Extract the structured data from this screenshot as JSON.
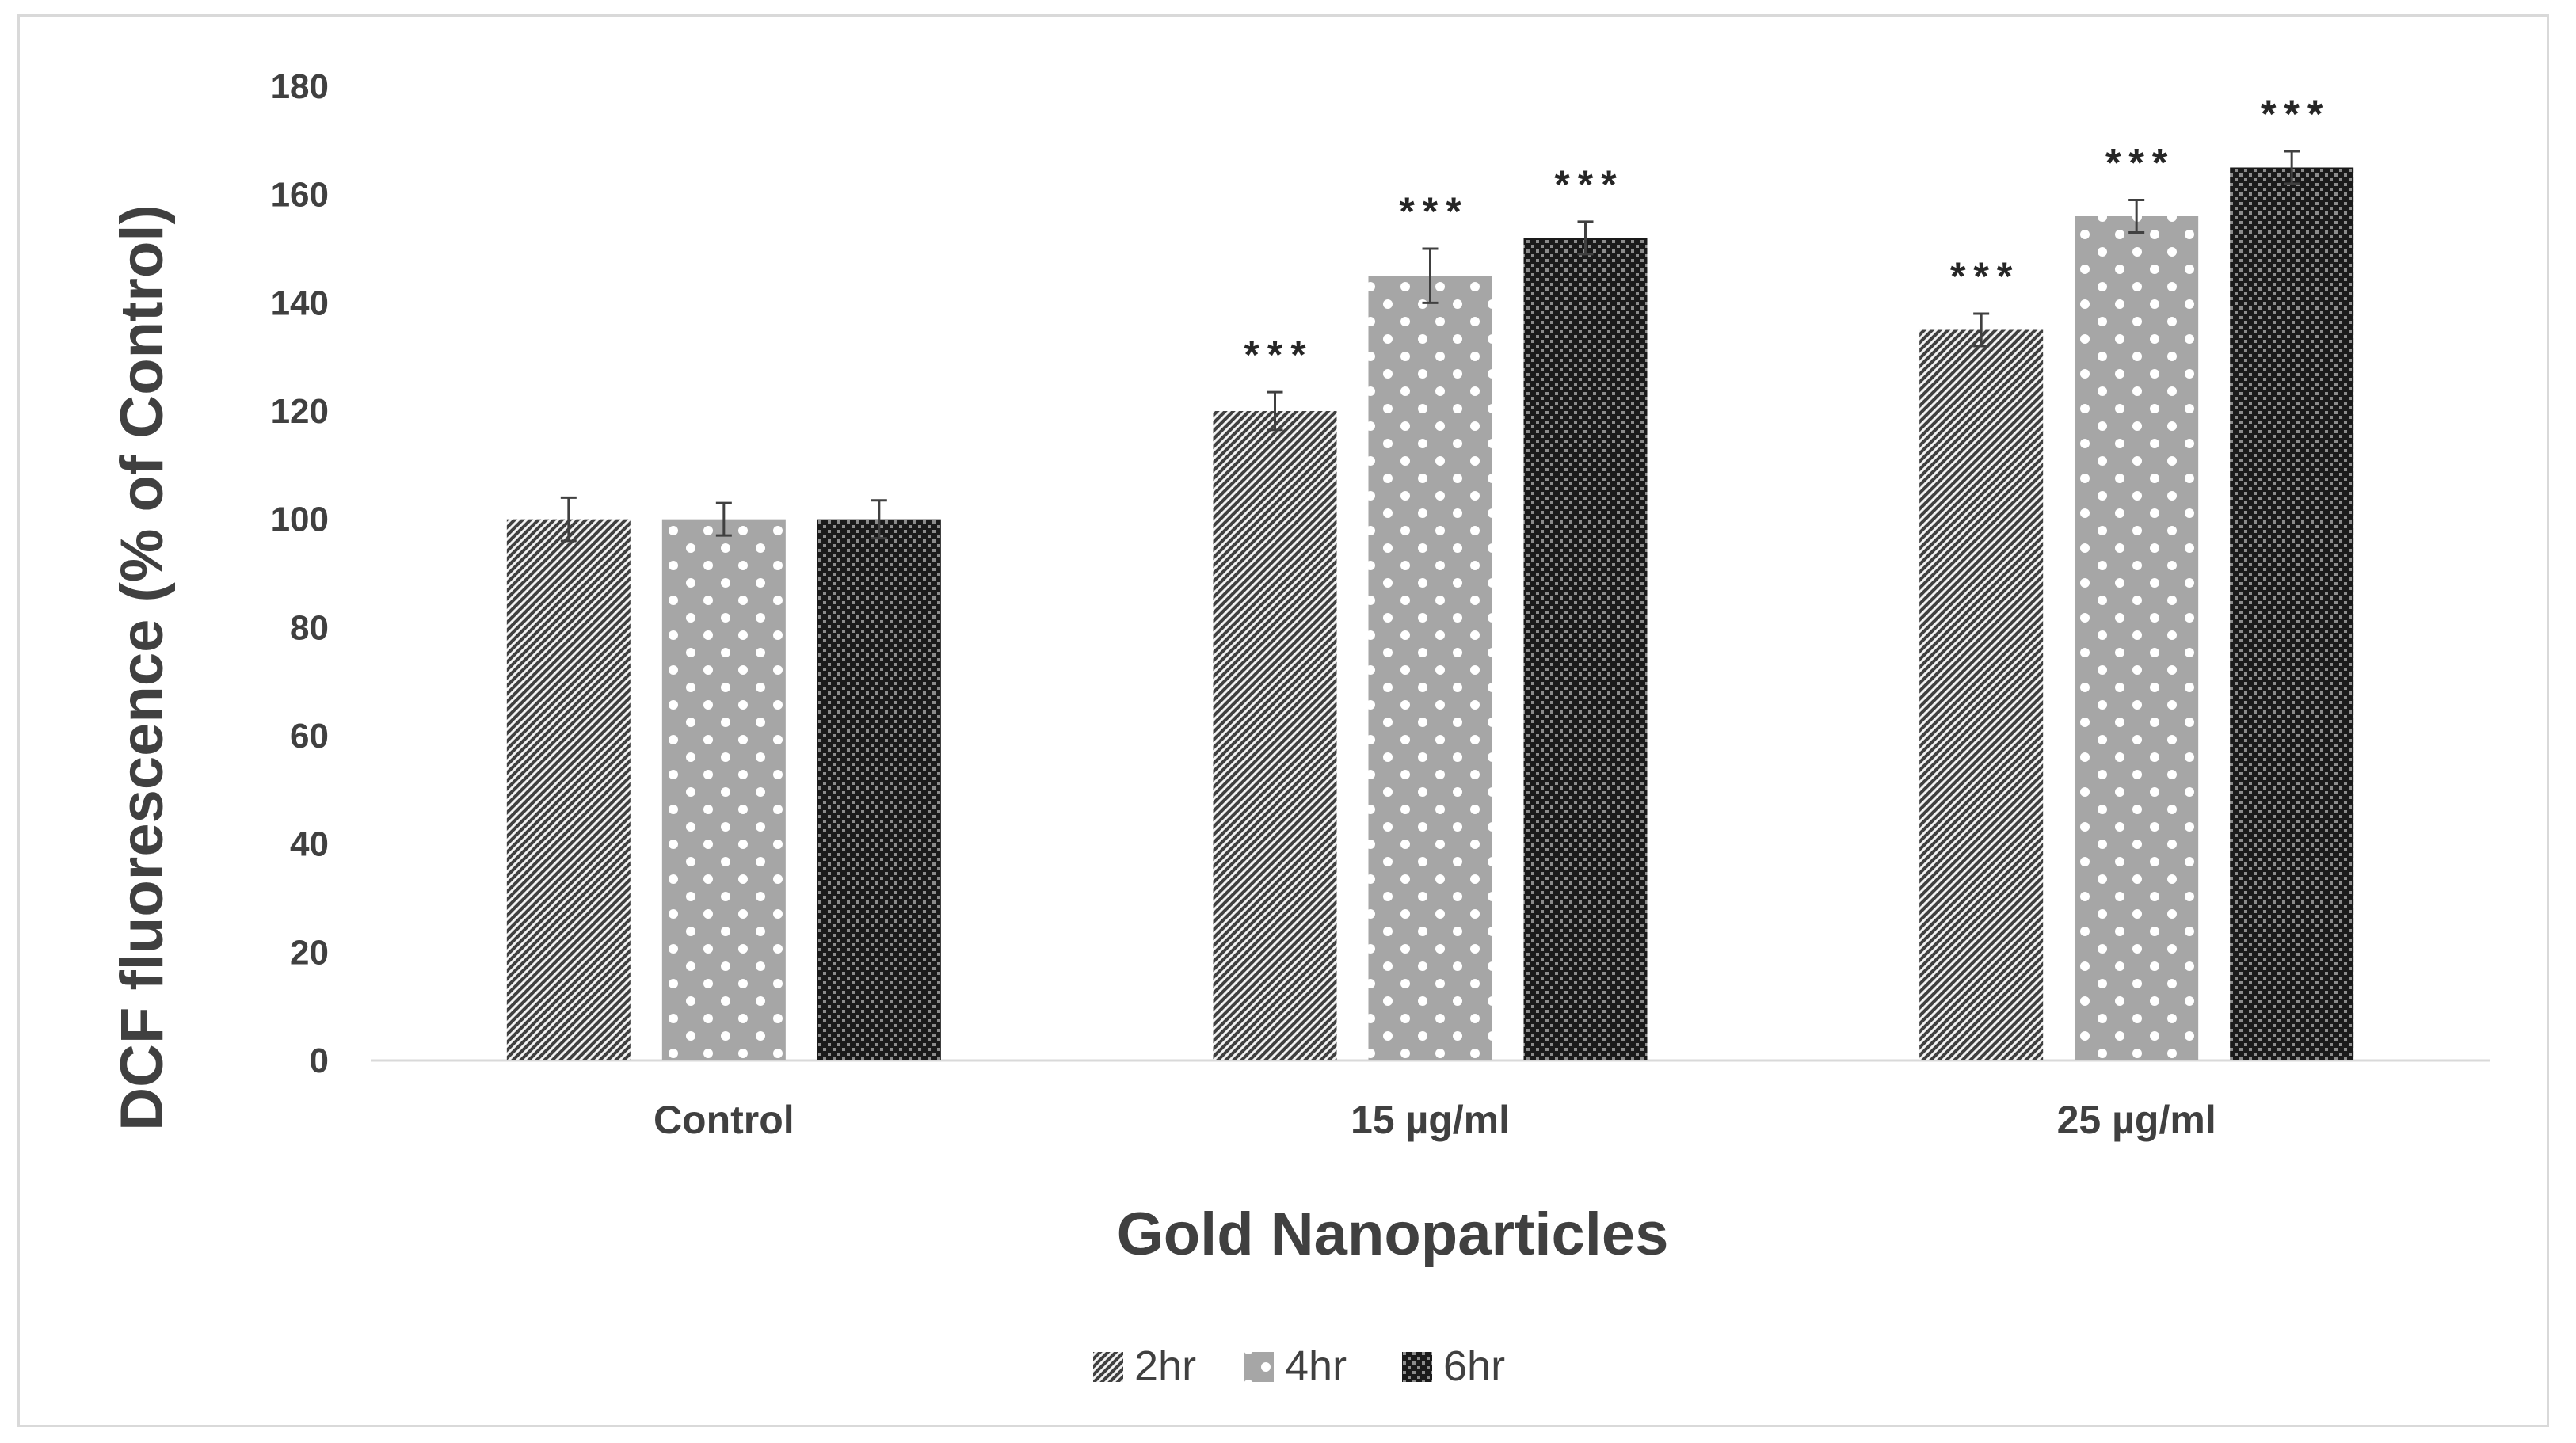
{
  "chart_data": {
    "type": "bar",
    "title": "",
    "xlabel": "Gold Nanoparticles",
    "ylabel": "DCF fluorescence (% of Control)",
    "ylim": [
      0,
      180
    ],
    "yticks": [
      0,
      20,
      40,
      60,
      80,
      100,
      120,
      140,
      160,
      180
    ],
    "grid": false,
    "legend_position": "bottom",
    "categories": [
      "Control",
      "15 µg/ml",
      "25 µg/ml"
    ],
    "series": [
      {
        "name": "2hr",
        "pattern": "diagonal-hatch",
        "values": [
          100,
          120,
          135
        ],
        "errors": [
          4,
          3.5,
          3
        ],
        "significance": [
          "",
          "***",
          "***"
        ]
      },
      {
        "name": "4hr",
        "pattern": "grey-dots",
        "values": [
          100,
          145,
          156
        ],
        "errors": [
          3,
          5,
          3
        ],
        "significance": [
          "",
          "***",
          "***"
        ]
      },
      {
        "name": "6hr",
        "pattern": "dark-checker",
        "values": [
          100,
          152,
          165
        ],
        "errors": [
          3.5,
          3,
          3
        ],
        "significance": [
          "",
          "***",
          "***"
        ]
      }
    ]
  },
  "colors": {
    "axis": "#d9d9d9",
    "text": "#404040",
    "frame": "#d9d9d9"
  }
}
